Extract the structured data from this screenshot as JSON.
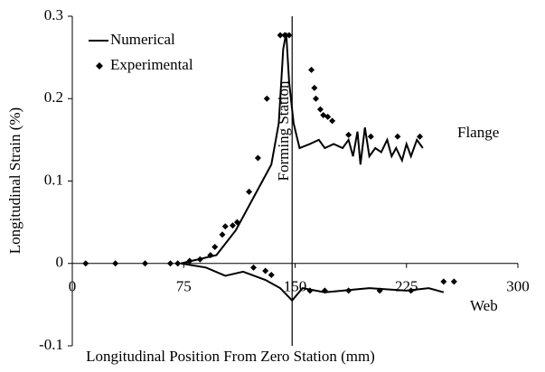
{
  "chart_data": {
    "type": "line",
    "xlabel": "Longitudinal Position From Zero Station (mm)",
    "ylabel": "Longitudinal Strain (%)",
    "xlim": [
      0,
      300
    ],
    "xticks": [
      0,
      75,
      150,
      225,
      300
    ],
    "ylim": [
      -0.1,
      0.3
    ],
    "yticks": [
      -0.1,
      0,
      0.1,
      0.2,
      0.3
    ],
    "legend": "top-left",
    "vline": {
      "x": 148,
      "label": "Forming Station"
    },
    "annotations": [
      "Flange",
      "Web"
    ],
    "series": [
      {
        "name": "Numerical",
        "color": "#000000",
        "marker": "none",
        "x": [
          73,
          97,
          110,
          122,
          134,
          139,
          142,
          144,
          146,
          149,
          153,
          160,
          166,
          170,
          176,
          182,
          186,
          189,
          192,
          194,
          197,
          200,
          204,
          208,
          212,
          215,
          218,
          222,
          225,
          228,
          232,
          236,
          null,
          73,
          90,
          103,
          115,
          130,
          140,
          148,
          155,
          170,
          200,
          225,
          240,
          250
        ],
        "values": [
          0,
          0.01,
          0.04,
          0.08,
          0.12,
          0.17,
          0.26,
          0.28,
          0.22,
          0.17,
          0.14,
          0.145,
          0.15,
          0.14,
          0.145,
          0.14,
          0.15,
          0.13,
          0.16,
          0.12,
          0.165,
          0.13,
          0.14,
          0.135,
          0.15,
          0.13,
          0.14,
          0.125,
          0.145,
          0.13,
          0.15,
          0.14,
          null,
          0,
          -0.005,
          -0.015,
          -0.01,
          -0.02,
          -0.03,
          -0.045,
          -0.03,
          -0.035,
          -0.03,
          -0.033,
          -0.03,
          -0.035
        ]
      },
      {
        "name": "Experimental",
        "color": "#000000",
        "marker": "diamond",
        "x": [
          9,
          29,
          49,
          66,
          71,
          79,
          86,
          93,
          96,
          101,
          103,
          108,
          111,
          119,
          125,
          131,
          140,
          143,
          146,
          161,
          163,
          164,
          167,
          169,
          172,
          175,
          186,
          201,
          219,
          234,
          122,
          130,
          134,
          160,
          170,
          186,
          207,
          228,
          250,
          257
        ],
        "values": [
          0,
          0,
          0,
          0,
          0,
          0.003,
          0.005,
          0.01,
          0.02,
          0.035,
          0.045,
          0.046,
          0.05,
          0.087,
          0.128,
          0.2,
          0.277,
          0.277,
          0.277,
          0.235,
          0.213,
          0.2,
          0.187,
          0.18,
          0.178,
          0.173,
          0.156,
          0.154,
          0.154,
          0.154,
          -0.005,
          -0.009,
          -0.014,
          -0.033,
          -0.033,
          -0.033,
          -0.033,
          -0.033,
          -0.022,
          -0.022
        ]
      }
    ]
  }
}
